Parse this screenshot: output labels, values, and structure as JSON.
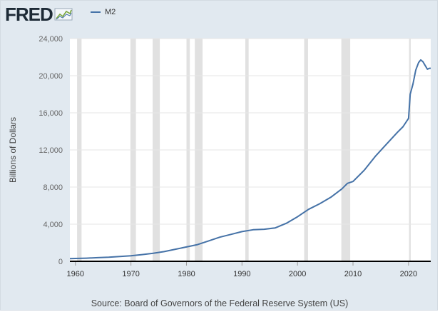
{
  "logo": {
    "text": "FRED"
  },
  "source": "Source: Board of Governors of the Federal Reserve System (US)",
  "colors": {
    "background": "#e1e9f0",
    "plot": "#ffffff",
    "series": "#4572a7",
    "recession": "#e1e1e1"
  },
  "chart_data": {
    "type": "line",
    "title": "",
    "xlabel": "",
    "ylabel": "Billions of Dollars",
    "xlim": [
      1959,
      2024
    ],
    "ylim": [
      0,
      24000
    ],
    "x_ticks": [
      1960,
      1970,
      1980,
      1990,
      2000,
      2010,
      2020
    ],
    "y_ticks": [
      0,
      4000,
      8000,
      12000,
      16000,
      20000,
      24000
    ],
    "y_tick_labels": [
      "0",
      "4,000",
      "8,000",
      "12,000",
      "16,000",
      "20,000",
      "24,000"
    ],
    "grid": true,
    "legend": "top-left",
    "recessions": [
      [
        1960.3,
        1961.1
      ],
      [
        1969.9,
        1970.9
      ],
      [
        1973.9,
        1975.2
      ],
      [
        1980.0,
        1980.6
      ],
      [
        1981.5,
        1982.9
      ],
      [
        1990.6,
        1991.2
      ],
      [
        2001.2,
        2001.9
      ],
      [
        2007.9,
        2009.5
      ],
      [
        2020.1,
        2020.4
      ]
    ],
    "series": [
      {
        "name": "M2",
        "x": [
          1959,
          1960,
          1962,
          1964,
          1966,
          1968,
          1970,
          1972,
          1974,
          1976,
          1978,
          1980,
          1982,
          1984,
          1986,
          1988,
          1990,
          1992,
          1994,
          1996,
          1998,
          2000,
          2002,
          2004,
          2006,
          2008,
          2009,
          2010,
          2012,
          2014,
          2016,
          2018,
          2019,
          2020,
          2020.3,
          2020.8,
          2021.3,
          2021.8,
          2022.2,
          2022.6,
          2023.0,
          2023.4,
          2023.8,
          2024.0
        ],
        "y": [
          290,
          305,
          340,
          390,
          440,
          520,
          590,
          720,
          870,
          1050,
          1300,
          1550,
          1800,
          2200,
          2600,
          2900,
          3200,
          3400,
          3450,
          3600,
          4100,
          4800,
          5600,
          6200,
          6900,
          7800,
          8400,
          8600,
          9800,
          11300,
          12600,
          13900,
          14500,
          15400,
          18000,
          19100,
          20600,
          21400,
          21700,
          21500,
          21100,
          20700,
          20800,
          20800
        ]
      }
    ]
  }
}
